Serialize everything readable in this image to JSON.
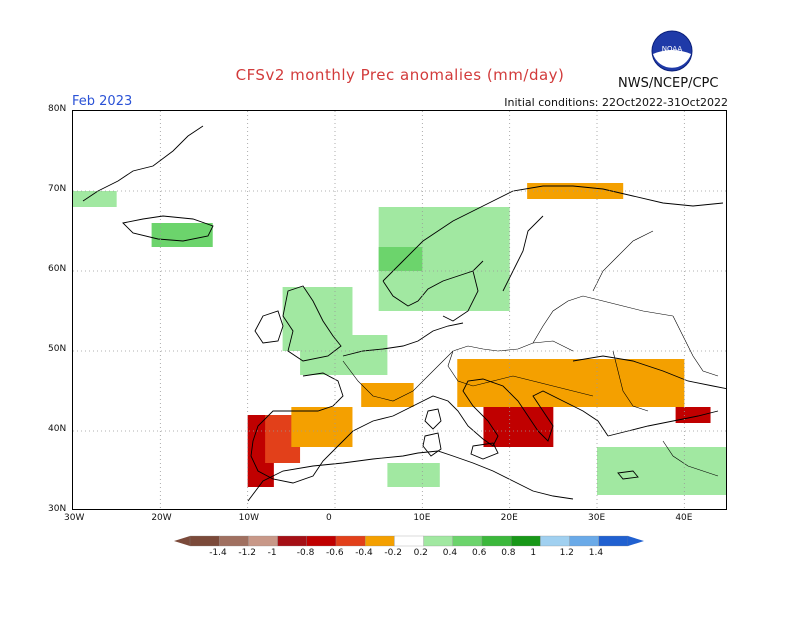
{
  "header": {
    "title": "CFSv2 monthly Prec anomalies (mm/day)",
    "month": "Feb 2023",
    "initial_conditions": "Initial conditions: 22Oct2022-31Oct2022",
    "agency": "NWS/NCEP/CPC",
    "logo_text": "NOAA"
  },
  "axes": {
    "lat_labels": [
      "80N",
      "70N",
      "60N",
      "50N",
      "40N",
      "30N"
    ],
    "lat_values": [
      80,
      70,
      60,
      50,
      40,
      30
    ],
    "lon_labels": [
      "30W",
      "20W",
      "10W",
      "0",
      "10E",
      "20E",
      "30E",
      "40E"
    ],
    "lon_values": [
      -30,
      -20,
      -10,
      0,
      10,
      20,
      30,
      40
    ],
    "lon_range": [
      -30,
      45
    ],
    "lat_range": [
      30,
      80
    ],
    "grid": "dotted"
  },
  "colorbar": {
    "labels": [
      "-1.4",
      "-1.2",
      "-1",
      "-0.8",
      "-0.6",
      "-0.4",
      "-0.2",
      "0.2",
      "0.4",
      "0.6",
      "0.8",
      "1",
      "1.2",
      "1.4"
    ],
    "colors": [
      "#7b4a3a",
      "#a07060",
      "#c89888",
      "#a50f15",
      "#c00000",
      "#e2401a",
      "#f4a000",
      "#ffffff",
      "#a1e8a1",
      "#6cd46c",
      "#3cb83c",
      "#189818",
      "#a0d0f0",
      "#6aaae8",
      "#2060d0"
    ]
  },
  "anomaly_regions": [
    {
      "name": "iberia-west",
      "color": "#c00000",
      "lon": [
        -10,
        -7
      ],
      "lat": [
        33,
        42
      ]
    },
    {
      "name": "iberia-south",
      "color": "#e2401a",
      "lon": [
        -8,
        -4
      ],
      "lat": [
        36,
        42
      ]
    },
    {
      "name": "iberia-orange",
      "color": "#f4a000",
      "lon": [
        -5,
        2
      ],
      "lat": [
        38,
        43
      ]
    },
    {
      "name": "spain-interior",
      "color": "#f4a000",
      "lon": [
        3,
        9
      ],
      "lat": [
        43,
        46
      ]
    },
    {
      "name": "balkans-red",
      "color": "#c00000",
      "lon": [
        17,
        25
      ],
      "lat": [
        38,
        45
      ]
    },
    {
      "name": "balkans-orange",
      "color": "#f4a000",
      "lon": [
        14,
        40
      ],
      "lat": [
        43,
        49
      ]
    },
    {
      "name": "turkey-red",
      "color": "#c00000",
      "lon": [
        39,
        43
      ],
      "lat": [
        41,
        43
      ]
    },
    {
      "name": "scandinavia-green",
      "color": "#a1e8a1",
      "lon": [
        5,
        20
      ],
      "lat": [
        55,
        68
      ]
    },
    {
      "name": "norway-coast",
      "color": "#6cd46c",
      "lon": [
        5,
        10
      ],
      "lat": [
        60,
        63
      ]
    },
    {
      "name": "uk-green",
      "color": "#a1e8a1",
      "lon": [
        -6,
        2
      ],
      "lat": [
        50,
        58
      ]
    },
    {
      "name": "france-green",
      "color": "#a1e8a1",
      "lon": [
        -4,
        6
      ],
      "lat": [
        47,
        52
      ]
    },
    {
      "name": "iceland",
      "color": "#6cd46c",
      "lon": [
        -21,
        -14
      ],
      "lat": [
        63,
        66
      ]
    },
    {
      "name": "greenland-tip",
      "color": "#a1e8a1",
      "lon": [
        -30,
        -25
      ],
      "lat": [
        68,
        70
      ]
    },
    {
      "name": "anatolia-green",
      "color": "#a1e8a1",
      "lon": [
        30,
        45
      ],
      "lat": [
        32,
        38
      ]
    },
    {
      "name": "north-africa-green",
      "color": "#a1e8a1",
      "lon": [
        6,
        12
      ],
      "lat": [
        33,
        36
      ]
    },
    {
      "name": "north-cape",
      "color": "#f4a000",
      "lon": [
        22,
        33
      ],
      "lat": [
        69,
        71
      ]
    }
  ]
}
